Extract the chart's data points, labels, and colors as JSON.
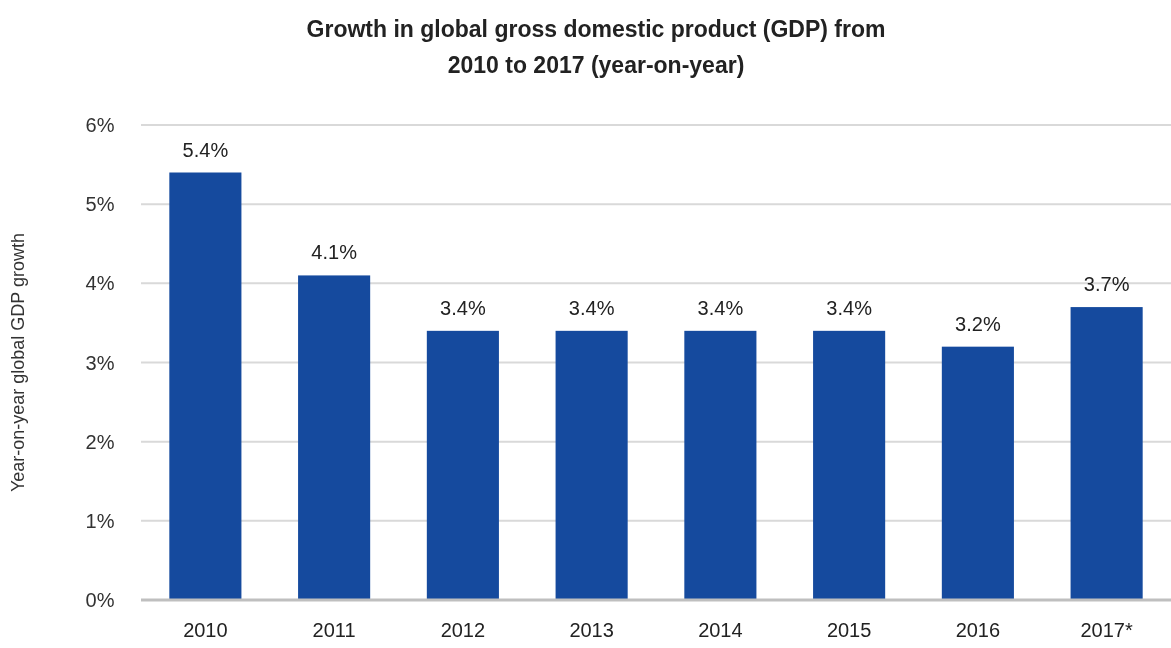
{
  "chart_data": {
    "type": "bar",
    "title": "Growth in global gross domestic product (GDP) from 2010 to 2017 (year-on-year)",
    "ylabel": "Year-on-year global GDP growth",
    "categories": [
      "2010",
      "2011",
      "2012",
      "2013",
      "2014",
      "2015",
      "2016",
      "2017*"
    ],
    "values": [
      5.4,
      4.1,
      3.4,
      3.4,
      3.4,
      3.4,
      3.2,
      3.7
    ],
    "value_labels": [
      "5.4%",
      "4.1%",
      "3.4%",
      "3.4%",
      "3.4%",
      "3.4%",
      "3.2%",
      "3.7%"
    ],
    "color": "#154a9e",
    "ylim": [
      0,
      6
    ],
    "yticks": [
      {
        "value": 0,
        "label": "0%"
      },
      {
        "value": 1,
        "label": "1%"
      },
      {
        "value": 2,
        "label": "2%"
      },
      {
        "value": 3,
        "label": "3%"
      },
      {
        "value": 4,
        "label": "4%"
      },
      {
        "value": 5,
        "label": "5%"
      },
      {
        "value": 6,
        "label": "6%"
      }
    ],
    "grid": "y"
  }
}
